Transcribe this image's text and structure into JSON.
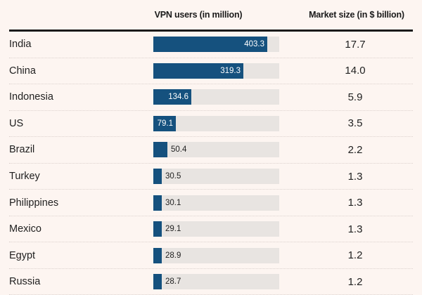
{
  "colors": {
    "background": "#fdf5f1",
    "bar": "#15517e",
    "bar_track": "#e8e4e1",
    "header_rule": "#1a1a1a",
    "text": "#1f1f1f",
    "row_separator": "#dcd2ce",
    "bar_label_inside": "#ffffff"
  },
  "table": {
    "col1_header": "VPN users (in million)",
    "col2_header": "Market size (in $ billion)",
    "rows": [
      {
        "country": "India",
        "vpn_users": "403.3",
        "market_size": "17.7"
      },
      {
        "country": "China",
        "vpn_users": "319.3",
        "market_size": "14.0"
      },
      {
        "country": "Indonesia",
        "vpn_users": "134.6",
        "market_size": "5.9"
      },
      {
        "country": "US",
        "vpn_users": "79.1",
        "market_size": "3.5"
      },
      {
        "country": "Brazil",
        "vpn_users": "50.4",
        "market_size": "2.2"
      },
      {
        "country": "Turkey",
        "vpn_users": "30.5",
        "market_size": "1.3"
      },
      {
        "country": "Philippines",
        "vpn_users": "30.1",
        "market_size": "1.3"
      },
      {
        "country": "Mexico",
        "vpn_users": "29.1",
        "market_size": "1.3"
      },
      {
        "country": "Egypt",
        "vpn_users": "28.9",
        "market_size": "1.2"
      },
      {
        "country": "Russia",
        "vpn_users": "28.7",
        "market_size": "1.2"
      }
    ]
  },
  "chart_data": {
    "type": "bar",
    "orientation": "horizontal",
    "title": "",
    "xlabel": "",
    "ylabel": "",
    "categories": [
      "India",
      "China",
      "Indonesia",
      "US",
      "Brazil",
      "Turkey",
      "Philippines",
      "Mexico",
      "Egypt",
      "Russia"
    ],
    "series": [
      {
        "name": "VPN users (in million)",
        "values": [
          403.3,
          319.3,
          134.6,
          79.1,
          50.4,
          30.5,
          30.1,
          29.1,
          28.9,
          28.7
        ]
      },
      {
        "name": "Market size (in $ billion)",
        "values": [
          17.7,
          14.0,
          5.9,
          3.5,
          2.2,
          1.3,
          1.3,
          1.3,
          1.2,
          1.2
        ]
      }
    ],
    "xlim": [
      0,
      446
    ],
    "grid": false,
    "legend_position": "none",
    "notes": "VPN users rendered as horizontal bars with data labels; market size rendered as a numeric text column; last row (Russia) partially cut off at bottom edge"
  }
}
